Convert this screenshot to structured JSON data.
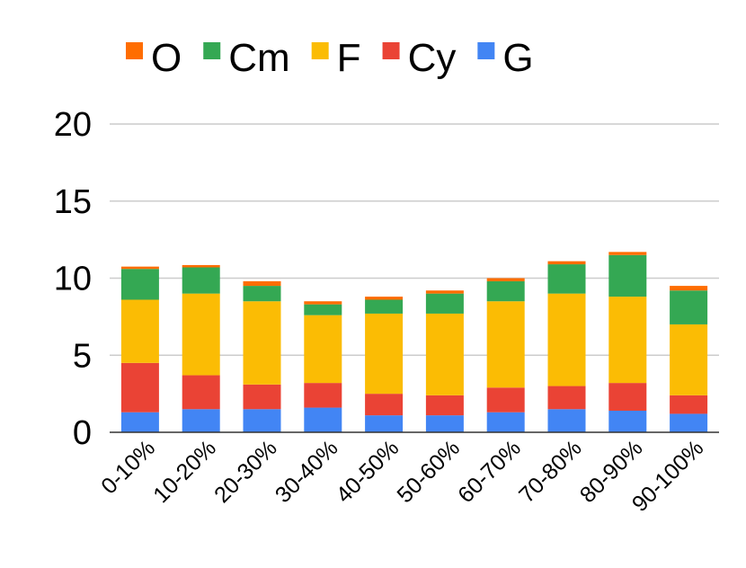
{
  "chart_data": {
    "type": "bar",
    "stacked": true,
    "title": "",
    "xlabel": "",
    "ylabel": "",
    "ylim": [
      0,
      20
    ],
    "yticks": [
      0,
      5,
      10,
      15,
      20
    ],
    "grid": true,
    "legend_position": "top",
    "categories": [
      "0-10%",
      "10-20%",
      "20-30%",
      "30-40%",
      "40-50%",
      "50-60%",
      "60-70%",
      "70-80%",
      "80-90%",
      "90-100%"
    ],
    "legend_order": [
      "O",
      "Cm",
      "F",
      "Cy",
      "G"
    ],
    "series": [
      {
        "name": "G",
        "color": "#4285F4",
        "values": [
          1.3,
          1.5,
          1.5,
          1.6,
          1.1,
          1.1,
          1.3,
          1.5,
          1.4,
          1.2
        ]
      },
      {
        "name": "Cy",
        "color": "#EA4335",
        "values": [
          3.2,
          2.2,
          1.6,
          1.6,
          1.4,
          1.3,
          1.6,
          1.5,
          1.8,
          1.2
        ]
      },
      {
        "name": "F",
        "color": "#FBBC04",
        "values": [
          4.1,
          5.3,
          5.4,
          4.4,
          5.2,
          5.3,
          5.6,
          6.0,
          5.6,
          4.6
        ]
      },
      {
        "name": "Cm",
        "color": "#34A853",
        "values": [
          2.0,
          1.7,
          1.0,
          0.7,
          0.9,
          1.3,
          1.3,
          1.9,
          2.7,
          2.2
        ]
      },
      {
        "name": "O",
        "color": "#FF6D01",
        "values": [
          0.15,
          0.15,
          0.3,
          0.2,
          0.2,
          0.2,
          0.2,
          0.2,
          0.2,
          0.3
        ]
      }
    ]
  }
}
